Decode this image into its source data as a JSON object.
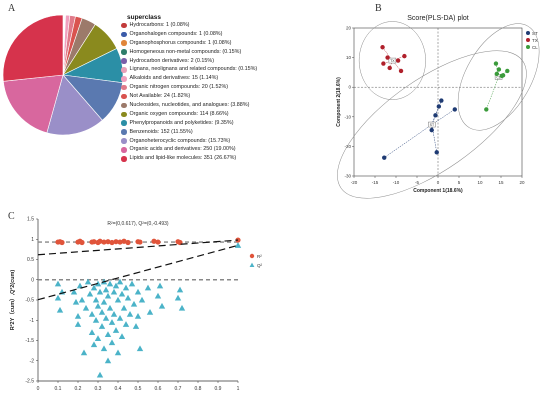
{
  "panel_a": {
    "letter": "A",
    "chart_data": {
      "type": "pie",
      "title": "superclass",
      "slices": [
        {
          "label": "Hydrocarbons: 1 (0.08%)",
          "value": 0.08,
          "color": "#c23b3b"
        },
        {
          "label": "Organohalogen compounds: 1 (0.08%)",
          "value": 0.08,
          "color": "#3b5ba9"
        },
        {
          "label": "Organophosphorus compounds: 1 (0.08%)",
          "value": 0.08,
          "color": "#e0863a"
        },
        {
          "label": "Homogeneous non-metal compounds: 2 (0.15%)",
          "value": 0.15,
          "color": "#2f7d6b"
        },
        {
          "label": "Hydrocarbon derivatives: 2 (0.15%)",
          "value": 0.15,
          "color": "#7a5ea8"
        },
        {
          "label": "Lignans, neolignans and related compounds: 2 (0.15%)",
          "value": 0.15,
          "color": "#e8a0b8"
        },
        {
          "label": "Alkaloids and derivatives: 15 (1.14%)",
          "value": 1.14,
          "color": "#f0a0bf"
        },
        {
          "label": "Organic nitrogen compounds: 20 (1.52%)",
          "value": 1.52,
          "color": "#e07a8a"
        },
        {
          "label": "Not Available: 24 (1.82%)",
          "value": 1.82,
          "color": "#d9534f"
        },
        {
          "label": "Nucleosides, nucleotides, and analogues: 51 (3.88%)",
          "value": 3.88,
          "color": "#9c7a6a"
        },
        {
          "label": "Organic oxygen compounds: 114 (8.66%)",
          "value": 8.66,
          "color": "#8a8a1e"
        },
        {
          "label": "Phenylpropanoids and polyketides: 123 (9.35%)",
          "value": 9.35,
          "color": "#2b8fa6"
        },
        {
          "label": "Benzenoids: 152 (11.55%)",
          "value": 11.55,
          "color": "#5a79b0"
        },
        {
          "label": "Organoheterocyclic compounds: 207 (15.73%)",
          "value": 15.73,
          "color": "#9a8fc8"
        },
        {
          "label": "Organic acids and derivatives: 250 (19.00%)",
          "value": 19.0,
          "color": "#d8679e"
        },
        {
          "label": "Lipids and lipid-like molecules: 351 (26.67%)",
          "value": 26.67,
          "color": "#d6334c"
        }
      ],
      "legend_labels": [
        "Hydrocarbons: 1 (0.08%)",
        "Organohalogen compounds: 1 (0.08%)",
        "Organophosphorus compounds: 1 (0.08%)",
        "Homogeneous non-metal compounds: (0.15%)",
        "Hydrocarbon derivatives: 2 (0.15%)",
        "Lignans, neolignans and related compounds: (0.15%)",
        "Alkaloids and derivatives: 15 (1.14%)",
        "Organic nitrogen compounds: 20 (1.52%)",
        "Not Available: 24 (1.82%)",
        "Nucleosides, nucleotides, and analogues: (3.88%)",
        "Organic oxygen compounds: 114 (8.66%)",
        "Phenylpropanoids and polyketides: (9.35%)",
        "Benzenoids: 152 (11.55%)",
        "Organoheterocyclic compounds: (15.73%)",
        "Organic acids and derivatives: 250 (19.00%)",
        "Lipids and lipid-like molecules: 351 (26.67%)"
      ]
    }
  },
  "panel_b": {
    "letter": "B",
    "chart_data": {
      "type": "scatter",
      "title": "Score(PLS-DA) plot",
      "xlabel": "Component 1(18.6%)",
      "ylabel": "Component 2(18.6%)",
      "xlim": [
        -20,
        20
      ],
      "ylim": [
        -30,
        20
      ],
      "xticks": [
        -20,
        -15,
        -10,
        -5,
        0,
        5,
        10,
        15,
        20
      ],
      "yticks": [
        -30,
        -20,
        -10,
        0,
        10,
        20
      ],
      "series": [
        {
          "name": "ST",
          "color": "#1f3b73",
          "label": "ST",
          "points": [
            [
              -12.8,
              -23.8
            ],
            [
              -1.5,
              -14.5
            ],
            [
              -0.3,
              -22.0
            ],
            [
              0.2,
              -6.5
            ],
            [
              0.8,
              -4.5
            ],
            [
              4.0,
              -7.5
            ],
            [
              -0.6,
              -9.5
            ]
          ]
        },
        {
          "name": "TX",
          "color": "#b0202b",
          "label": "TX",
          "points": [
            [
              -13.2,
              13.5
            ],
            [
              -12.0,
              10.0
            ],
            [
              -11.5,
              6.5
            ],
            [
              -9.5,
              9.0
            ],
            [
              -8.8,
              5.5
            ],
            [
              -8.0,
              10.5
            ],
            [
              -13.0,
              8.0
            ]
          ]
        },
        {
          "name": "CL",
          "color": "#3b9b3b",
          "label": "CL",
          "points": [
            [
              11.5,
              -7.5
            ],
            [
              13.8,
              8.0
            ],
            [
              14.5,
              6.0
            ],
            [
              15.2,
              3.8
            ],
            [
              16.5,
              5.5
            ],
            [
              14.0,
              4.5
            ],
            [
              15.5,
              4.0
            ]
          ]
        }
      ]
    }
  },
  "panel_c": {
    "letter": "C",
    "chart_data": {
      "type": "scatter",
      "annotation": "R²=(0,0.617), Q²=(0,-0.493)",
      "ylabel": "R²2Y（cum）,Q²2(cum)",
      "xlim": [
        0,
        1
      ],
      "ylim": [
        -2.5,
        1.5
      ],
      "xticks": [
        "0",
        "0.1",
        "0.2",
        "0.3",
        "0.4",
        "0.5",
        "0.6",
        "0.7",
        "0.8",
        "0.9",
        "1"
      ],
      "yticks": [
        "1.5",
        "1",
        "0.5",
        "0",
        "-0.5",
        "-1",
        "-1.5",
        "-2",
        "-2.5"
      ],
      "series": [
        {
          "name": "R²",
          "marker": "circle",
          "color": "#e0543a",
          "points": [
            [
              0.1,
              0.93
            ],
            [
              0.11,
              0.94
            ],
            [
              0.12,
              0.92
            ],
            [
              0.2,
              0.93
            ],
            [
              0.21,
              0.95
            ],
            [
              0.22,
              0.92
            ],
            [
              0.27,
              0.93
            ],
            [
              0.28,
              0.94
            ],
            [
              0.3,
              0.92
            ],
            [
              0.31,
              0.95
            ],
            [
              0.33,
              0.93
            ],
            [
              0.35,
              0.94
            ],
            [
              0.37,
              0.92
            ],
            [
              0.39,
              0.94
            ],
            [
              0.41,
              0.93
            ],
            [
              0.43,
              0.95
            ],
            [
              0.45,
              0.92
            ],
            [
              0.5,
              0.94
            ],
            [
              0.51,
              0.93
            ],
            [
              0.58,
              0.95
            ],
            [
              0.6,
              0.93
            ],
            [
              0.7,
              0.94
            ],
            [
              0.71,
              0.92
            ],
            [
              1.0,
              0.98
            ]
          ]
        },
        {
          "name": "Q²",
          "marker": "triangle",
          "color": "#4bb3c8",
          "points": [
            [
              0.1,
              -0.1
            ],
            [
              0.1,
              -0.45
            ],
            [
              0.11,
              -0.75
            ],
            [
              0.12,
              -0.3
            ],
            [
              0.18,
              -0.3
            ],
            [
              0.19,
              -0.55
            ],
            [
              0.2,
              -0.9
            ],
            [
              0.2,
              -1.1
            ],
            [
              0.21,
              -0.15
            ],
            [
              0.22,
              -0.5
            ],
            [
              0.23,
              -1.8
            ],
            [
              0.24,
              -0.7
            ],
            [
              0.25,
              -0.05
            ],
            [
              0.26,
              -0.35
            ],
            [
              0.27,
              -0.85
            ],
            [
              0.27,
              -1.3
            ],
            [
              0.28,
              -0.2
            ],
            [
              0.28,
              -1.6
            ],
            [
              0.29,
              -0.5
            ],
            [
              0.29,
              -1.0
            ],
            [
              0.3,
              -0.1
            ],
            [
              0.3,
              -0.65
            ],
            [
              0.3,
              -1.45
            ],
            [
              0.31,
              -2.35
            ],
            [
              0.31,
              -0.3
            ],
            [
              0.32,
              -0.8
            ],
            [
              0.32,
              -1.15
            ],
            [
              0.33,
              -0.05
            ],
            [
              0.33,
              -0.55
            ],
            [
              0.33,
              -1.7
            ],
            [
              0.34,
              -0.25
            ],
            [
              0.34,
              -0.95
            ],
            [
              0.35,
              -0.4
            ],
            [
              0.35,
              -1.35
            ],
            [
              0.35,
              -2.0
            ],
            [
              0.36,
              -0.1
            ],
            [
              0.36,
              -0.7
            ],
            [
              0.37,
              -1.05
            ],
            [
              0.37,
              -1.55
            ],
            [
              0.38,
              -0.3
            ],
            [
              0.38,
              -0.85
            ],
            [
              0.39,
              -0.15
            ],
            [
              0.39,
              -1.25
            ],
            [
              0.4,
              -0.5
            ],
            [
              0.4,
              -1.8
            ],
            [
              0.41,
              -0.05
            ],
            [
              0.41,
              -0.95
            ],
            [
              0.42,
              -0.35
            ],
            [
              0.42,
              -1.4
            ],
            [
              0.43,
              -0.7
            ],
            [
              0.44,
              -0.2
            ],
            [
              0.44,
              -1.1
            ],
            [
              0.45,
              -0.45
            ],
            [
              0.46,
              -0.85
            ],
            [
              0.47,
              -0.1
            ],
            [
              0.48,
              -0.6
            ],
            [
              0.49,
              -1.15
            ],
            [
              0.5,
              -0.3
            ],
            [
              0.5,
              -0.9
            ],
            [
              0.51,
              -1.7
            ],
            [
              0.52,
              -0.5
            ],
            [
              0.55,
              -0.2
            ],
            [
              0.56,
              -0.8
            ],
            [
              0.6,
              -0.4
            ],
            [
              0.61,
              -0.15
            ],
            [
              0.62,
              -0.65
            ],
            [
              0.7,
              -0.45
            ],
            [
              0.71,
              -0.25
            ],
            [
              0.72,
              -0.7
            ],
            [
              1.0,
              0.85
            ]
          ]
        }
      ]
    }
  }
}
